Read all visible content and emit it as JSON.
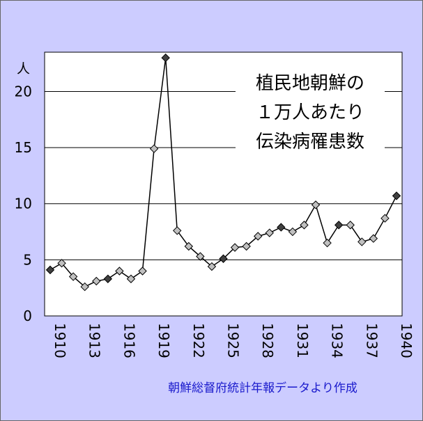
{
  "chart_data": {
    "type": "line",
    "title_lines": [
      "植民地朝鮮の",
      "１万人あたり",
      "伝染病罹患数"
    ],
    "ylabel": "人",
    "xlabel": "",
    "source": "朝鮮総督府統計年報データより作成",
    "ylim": [
      0,
      23.5
    ],
    "yticks": [
      "0",
      "5",
      "10",
      "15",
      "20"
    ],
    "xlim": [
      1910,
      1940
    ],
    "xticks": [
      "1910",
      "1913",
      "1916",
      "1919",
      "1922",
      "1925",
      "1928",
      "1931",
      "1934",
      "1937",
      "1940"
    ],
    "grid": "horizontal",
    "legend": "none",
    "x": [
      1910,
      1911,
      1912,
      1913,
      1914,
      1915,
      1916,
      1917,
      1918,
      1919,
      1920,
      1921,
      1922,
      1923,
      1924,
      1925,
      1926,
      1927,
      1928,
      1929,
      1930,
      1931,
      1932,
      1933,
      1934,
      1935,
      1936,
      1937,
      1938,
      1939,
      1940
    ],
    "values": [
      4.1,
      4.7,
      3.5,
      2.6,
      3.1,
      3.3,
      4.0,
      3.3,
      4.0,
      14.9,
      23.0,
      7.6,
      6.2,
      5.3,
      4.4,
      5.1,
      6.1,
      6.2,
      7.1,
      7.4,
      7.9,
      7.5,
      8.1,
      9.9,
      6.5,
      8.1,
      8.1,
      6.6,
      6.9,
      8.7,
      10.7
    ],
    "dark_points": [
      1910,
      1915,
      1920,
      1925,
      1930,
      1935,
      1940
    ],
    "colors": {
      "background": "#ccccff",
      "plot_area": "#ffffff",
      "marker_light": "#c0c0c0",
      "marker_dark": "#404040",
      "line": "#000000",
      "source_text": "#1a1acc"
    }
  }
}
